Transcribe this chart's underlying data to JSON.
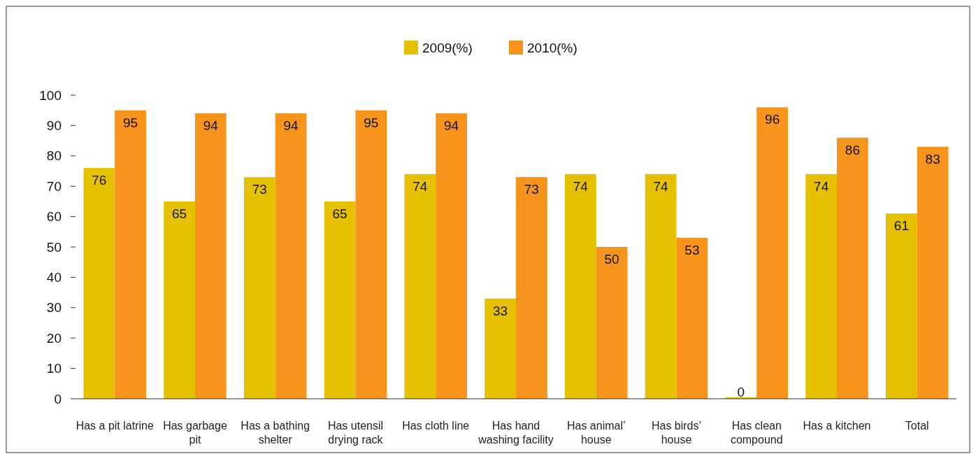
{
  "chart_data": {
    "type": "bar",
    "categories": [
      "Has a pit latrine",
      "Has garbage\npit",
      "Has a bathing\nshelter",
      "Has utensil\ndrying rack",
      "Has cloth line",
      "Has hand\nwashing facility",
      "Has animal’\nhouse",
      "Has birds’\nhouse",
      "Has clean\ncompound",
      "Has a kitchen",
      "Total"
    ],
    "series": [
      {
        "name": "2009(%)",
        "color": "#e5c100",
        "values": [
          76,
          65,
          73,
          65,
          74,
          33,
          74,
          74,
          0,
          74,
          61
        ]
      },
      {
        "name": "2010(%)",
        "color": "#f7941d",
        "values": [
          95,
          94,
          94,
          95,
          94,
          73,
          50,
          53,
          96,
          86,
          83
        ]
      }
    ],
    "ylim": [
      0,
      100
    ],
    "yticks": [
      0,
      10,
      20,
      30,
      40,
      50,
      60,
      70,
      80,
      90,
      100
    ],
    "data_labels": true,
    "legend": "top",
    "grid": false
  }
}
